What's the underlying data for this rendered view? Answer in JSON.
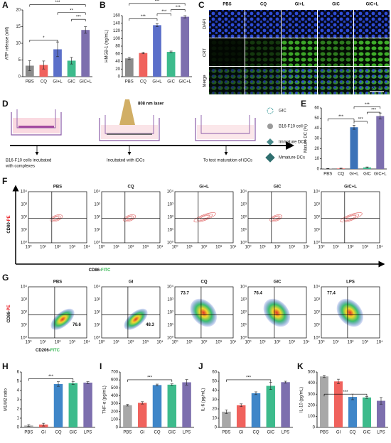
{
  "chart_data": [
    {
      "type": "bar",
      "panel": "A",
      "y_label": "ATP release (nM)",
      "categories": [
        "PBS",
        "CQ",
        "GI+L",
        "GIC",
        "GIC+L"
      ],
      "values": [
        3.3,
        3.5,
        8.2,
        4.8,
        14
      ],
      "errors": [
        1.5,
        1.2,
        2.2,
        1,
        1
      ],
      "colors": [
        "#8c8c8c",
        "#f0625d",
        "#5b6fc9",
        "#3dbb8c",
        "#7d6fae"
      ],
      "ylim": [
        0,
        20
      ],
      "yticks": [
        0,
        5,
        10,
        15,
        20
      ],
      "annotations": [
        "***",
        "*",
        "**",
        "***"
      ]
    },
    {
      "type": "bar",
      "panel": "B",
      "y_label": "HMGB-1 (ng/mL)",
      "categories": [
        "PBS",
        "CQ",
        "GI+L",
        "GIC",
        "GIC+L"
      ],
      "values": [
        48,
        62,
        135,
        65,
        157
      ],
      "errors": [
        3,
        2,
        4,
        2,
        3
      ],
      "colors": [
        "#8c8c8c",
        "#f0625d",
        "#5b6fc9",
        "#3dbb8c",
        "#7d6fae"
      ],
      "ylim": [
        0,
        160
      ],
      "yticks": [
        0,
        20,
        40,
        60,
        80,
        100,
        120,
        140,
        160
      ],
      "annotations": [
        "***",
        "***",
        "***",
        "***"
      ]
    },
    {
      "type": "bar",
      "panel": "E",
      "y_label": "Mature DC (%)",
      "categories": [
        "PBS",
        "CQ",
        "GI+L",
        "GIC",
        "GIC+L"
      ],
      "values": [
        0.3,
        0.5,
        41,
        1.5,
        52
      ],
      "errors": [
        0.2,
        0.3,
        2,
        0.5,
        3
      ],
      "colors": [
        "#8c8c8c",
        "#f0625d",
        "#3b72b8",
        "#3dbb8c",
        "#7d6fae"
      ],
      "ylim": [
        0,
        60
      ],
      "yticks": [
        0,
        10,
        20,
        30,
        40,
        50,
        60
      ],
      "annotations": [
        "***",
        "***",
        "***",
        "***"
      ]
    },
    {
      "type": "bar",
      "panel": "H",
      "y_label": "M1/M2 ratio",
      "categories": [
        "PBS",
        "GI",
        "CQ",
        "GIC",
        "LPS"
      ],
      "values": [
        0.2,
        0.3,
        4.7,
        4.8,
        4.85
      ],
      "errors": [
        0.1,
        0.15,
        0.25,
        0.15,
        0.1
      ],
      "colors": [
        "#a8a8a8",
        "#f0625d",
        "#3f86c8",
        "#3dbb8c",
        "#7d6fae"
      ],
      "ylim": [
        0,
        6
      ],
      "yticks": [
        0,
        1,
        2,
        3,
        4,
        5,
        6
      ],
      "annotations": [
        "***"
      ]
    },
    {
      "type": "bar",
      "panel": "I",
      "y_label": "TNF-α (pg/mL)",
      "categories": [
        "PBS",
        "GI",
        "CQ",
        "GIC",
        "LPS"
      ],
      "values": [
        280,
        310,
        535,
        540,
        570
      ],
      "errors": [
        10,
        15,
        12,
        10,
        35
      ],
      "colors": [
        "#a8a8a8",
        "#f0625d",
        "#3f86c8",
        "#3dbb8c",
        "#7d6fae"
      ],
      "ylim": [
        0,
        700
      ],
      "yticks": [
        0,
        100,
        200,
        300,
        400,
        500,
        600,
        700
      ],
      "annotations": [
        "***"
      ]
    },
    {
      "type": "bar",
      "panel": "J",
      "y_label": "IL-6 (pg/mL)",
      "categories": [
        "PBS",
        "GI",
        "CQ",
        "GIC",
        "LPS"
      ],
      "values": [
        17,
        24,
        37,
        45,
        49
      ],
      "errors": [
        2,
        1.5,
        1.5,
        4,
        1
      ],
      "colors": [
        "#a8a8a8",
        "#f0625d",
        "#3f86c8",
        "#3dbb8c",
        "#7d6fae"
      ],
      "ylim": [
        0,
        60
      ],
      "yticks": [
        0,
        10,
        20,
        30,
        40,
        50,
        60
      ],
      "annotations": [
        "***"
      ]
    },
    {
      "type": "bar",
      "panel": "K",
      "y_label": "IL-10 (pg/mL)",
      "categories": [
        "PBS",
        "GI",
        "CQ",
        "GIC",
        "LPS"
      ],
      "values": [
        460,
        415,
        275,
        270,
        240
      ],
      "errors": [
        10,
        20,
        25,
        8,
        30
      ],
      "colors": [
        "#a8a8a8",
        "#f0625d",
        "#3f86c8",
        "#3dbb8c",
        "#7d6fae"
      ],
      "ylim": [
        0,
        500
      ],
      "yticks": [
        0,
        100,
        200,
        300,
        400,
        500
      ],
      "annotations": [
        "***"
      ]
    }
  ],
  "panel_c": {
    "panel": "C",
    "columns": [
      "PBS",
      "CQ",
      "GI+L",
      "GIC",
      "GIC+L"
    ],
    "rows": [
      "DAPI",
      "CRT",
      "Merge"
    ],
    "scale_bar": "20 μm"
  },
  "panel_d": {
    "panel": "D",
    "laser": "808 nm laser",
    "steps": [
      [
        "B16-F10 cells incubated",
        "with complexes"
      ],
      [
        "Incubated with iDCs"
      ],
      [
        "To test maturation of iDCs"
      ]
    ],
    "legend": [
      "GIC",
      "B16-F10 cell",
      "Immature DCs",
      "Mmature DCs"
    ]
  },
  "panel_f": {
    "panel": "F",
    "titles": [
      "PBS",
      "CQ",
      "GI+L",
      "GIC",
      "GIC+L"
    ],
    "tick_labels": [
      "10⁰",
      "10¹",
      "10²",
      "10³",
      "10⁴"
    ],
    "y_label": [
      "CD80-",
      "PE"
    ],
    "x_label": [
      "CD86-",
      "FITC"
    ]
  },
  "panel_g": {
    "panel": "G",
    "titles": [
      "PBS",
      "GI",
      "CQ",
      "GIC",
      "LPS"
    ],
    "values": [
      76.6,
      48.3,
      73.7,
      76.4,
      77.4
    ],
    "value_colors": [
      "#2e8b3a",
      "#2e8b3a",
      "#e8262c",
      "#e8262c",
      "#e8262c"
    ],
    "tick_labels": [
      "10⁰",
      "10¹",
      "10²",
      "10³",
      "10⁴"
    ],
    "y_label": [
      "CD86-",
      "PE"
    ],
    "x_label": [
      "CD206-",
      "FITC"
    ]
  }
}
